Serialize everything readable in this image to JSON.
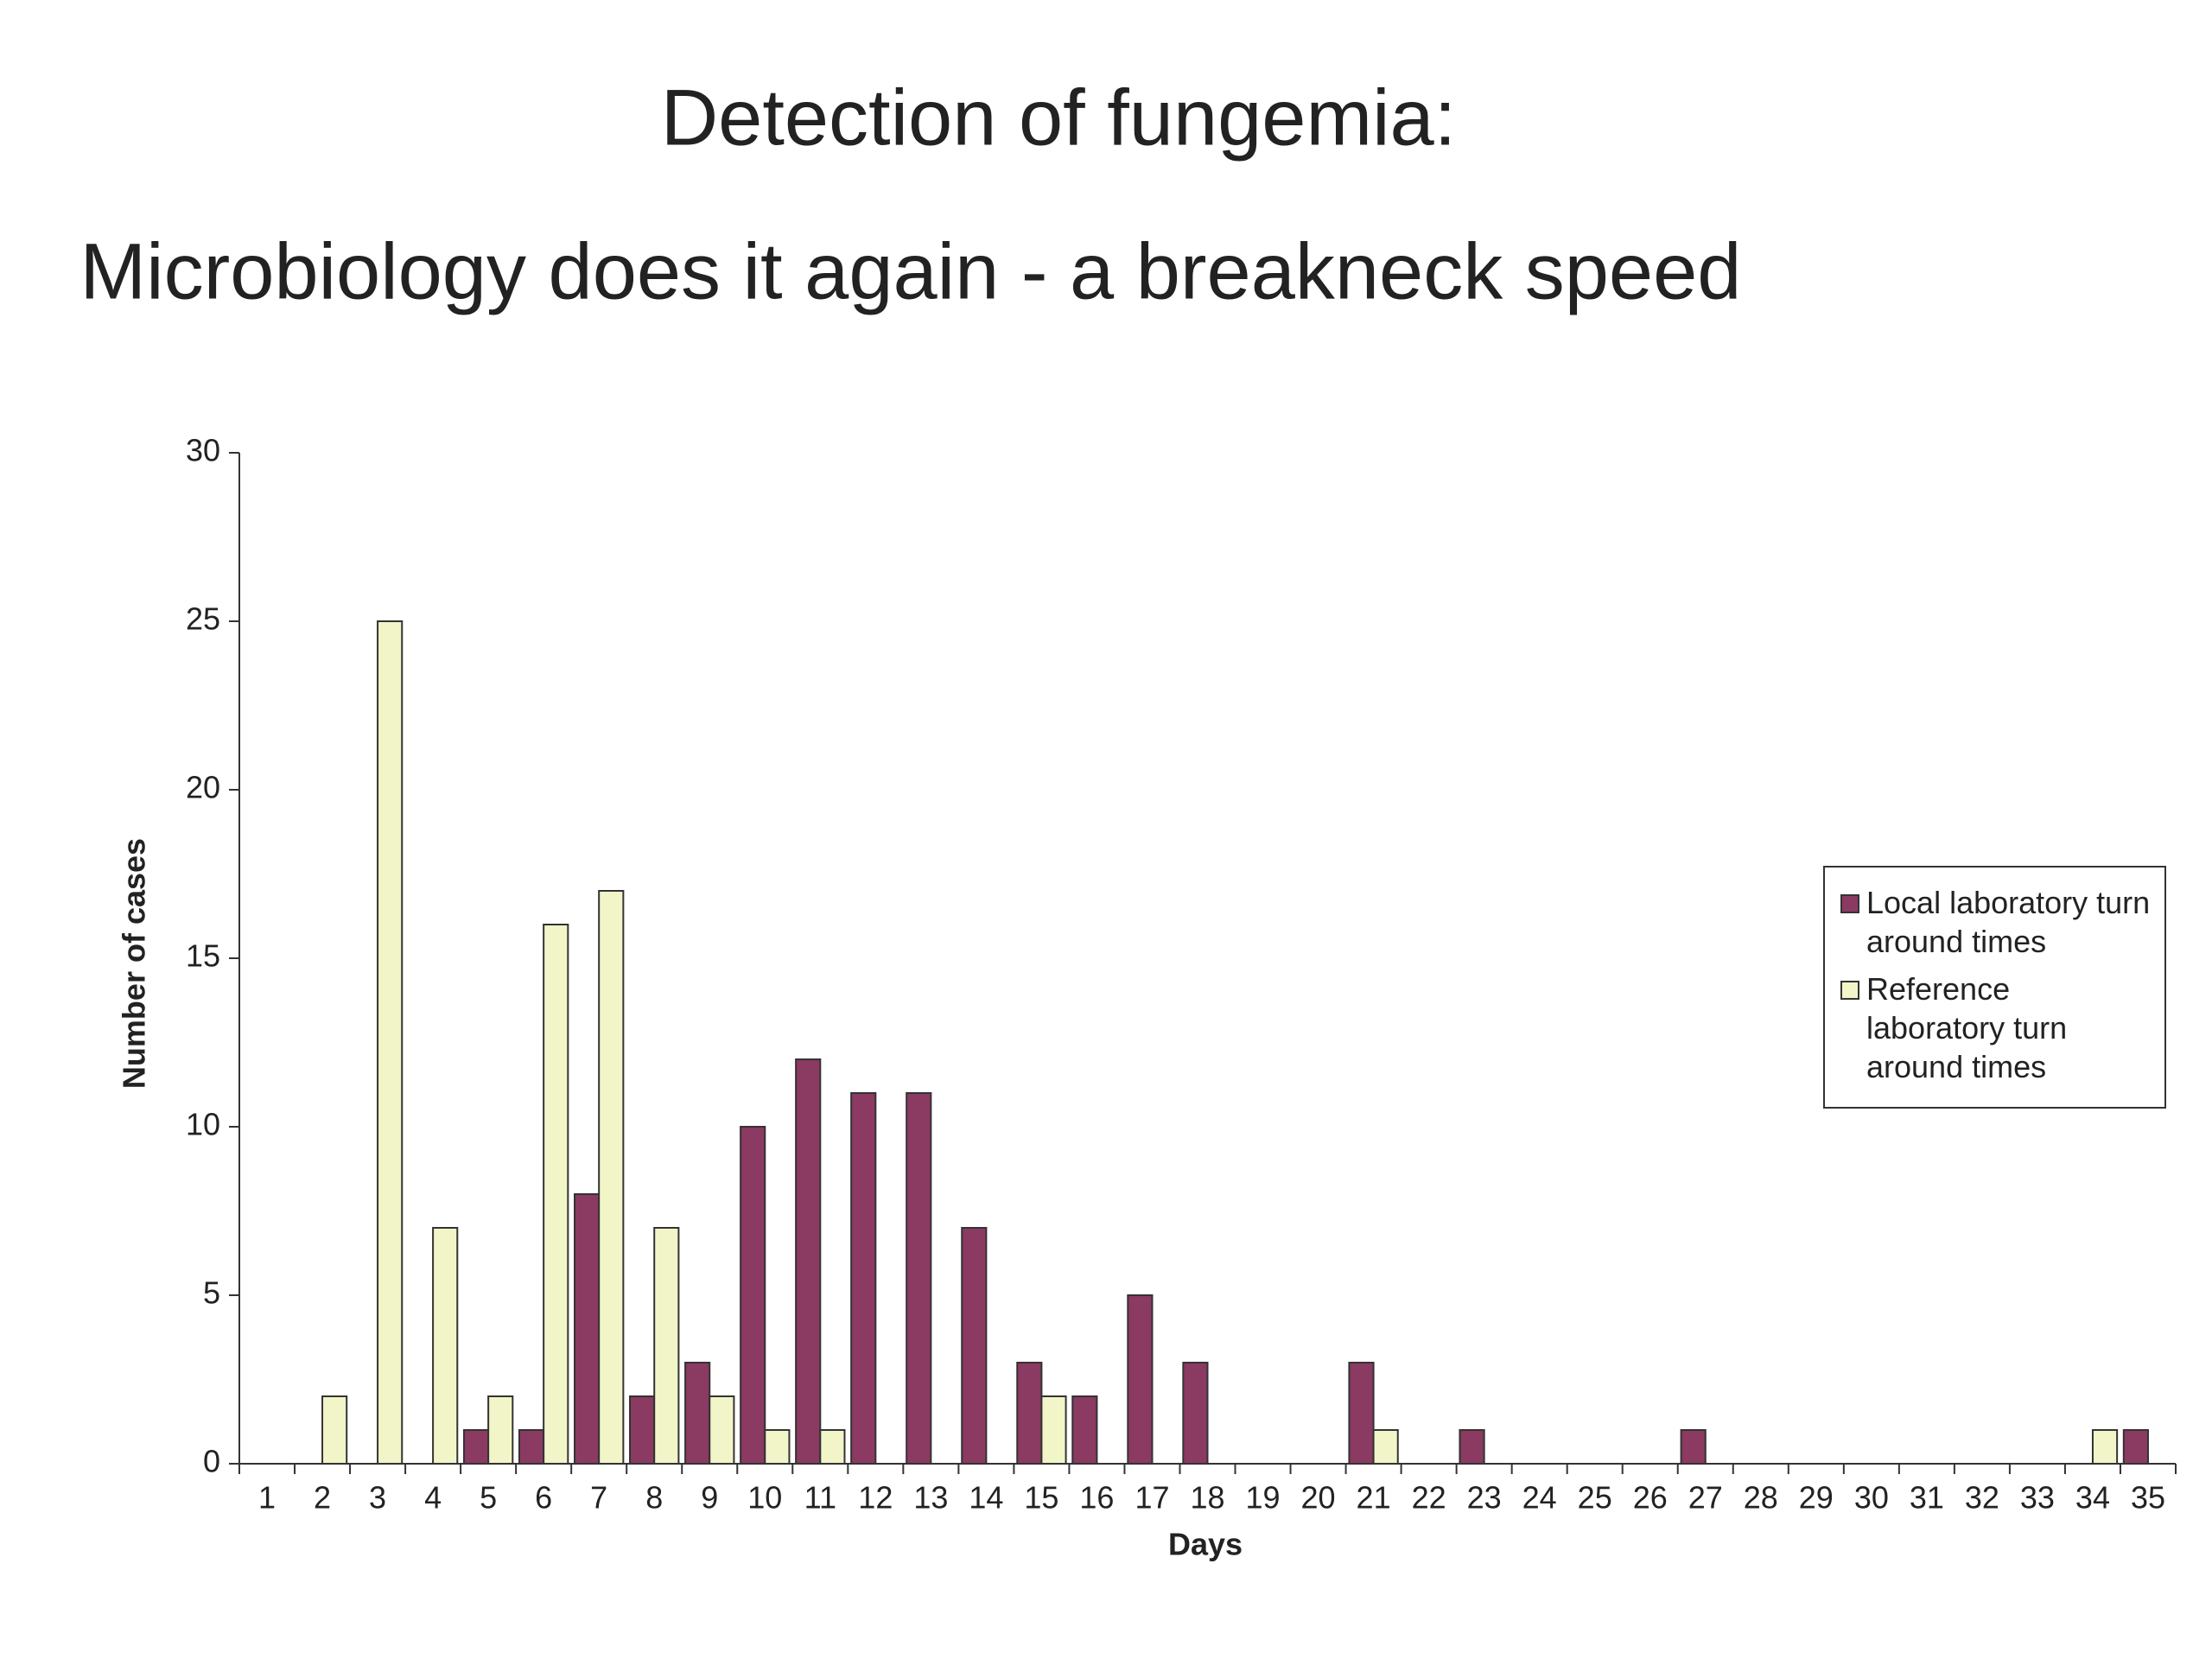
{
  "chart_data": {
    "type": "bar",
    "title": "Detection of fungemia:",
    "subtitle": "Microbiology does it again - a breakneck speed",
    "x_label": "Days",
    "y_label": "Number of cases",
    "categories": [
      "1",
      "2",
      "3",
      "4",
      "5",
      "6",
      "7",
      "8",
      "9",
      "10",
      "11",
      "12",
      "13",
      "14",
      "15",
      "16",
      "17",
      "18",
      "19",
      "20",
      "21",
      "22",
      "23",
      "24",
      "25",
      "26",
      "27",
      "28",
      "29",
      "30",
      "31",
      "32",
      "33",
      "34",
      "35"
    ],
    "series": [
      {
        "name": "Local laboratory turn around times",
        "color": "#8b3a62",
        "values": [
          0,
          0,
          0,
          0,
          1,
          1,
          8,
          2,
          3,
          10,
          12,
          11,
          11,
          7,
          3,
          2,
          5,
          3,
          0,
          0,
          3,
          0,
          1,
          0,
          0,
          0,
          1,
          0,
          0,
          0,
          0,
          0,
          0,
          0,
          1
        ]
      },
      {
        "name": "Reference laboratory turn around times",
        "color": "#f2f5c8",
        "values": [
          0,
          2,
          25,
          7,
          2,
          16,
          17,
          7,
          2,
          1,
          1,
          0,
          0,
          0,
          2,
          0,
          0,
          0,
          0,
          0,
          1,
          0,
          0,
          0,
          0,
          0,
          0,
          0,
          0,
          0,
          0,
          0,
          0,
          1,
          0
        ]
      }
    ],
    "ylim": [
      0,
      30
    ],
    "yticks": [
      0,
      5,
      10,
      15,
      20,
      25,
      30
    ],
    "legend": "right"
  }
}
